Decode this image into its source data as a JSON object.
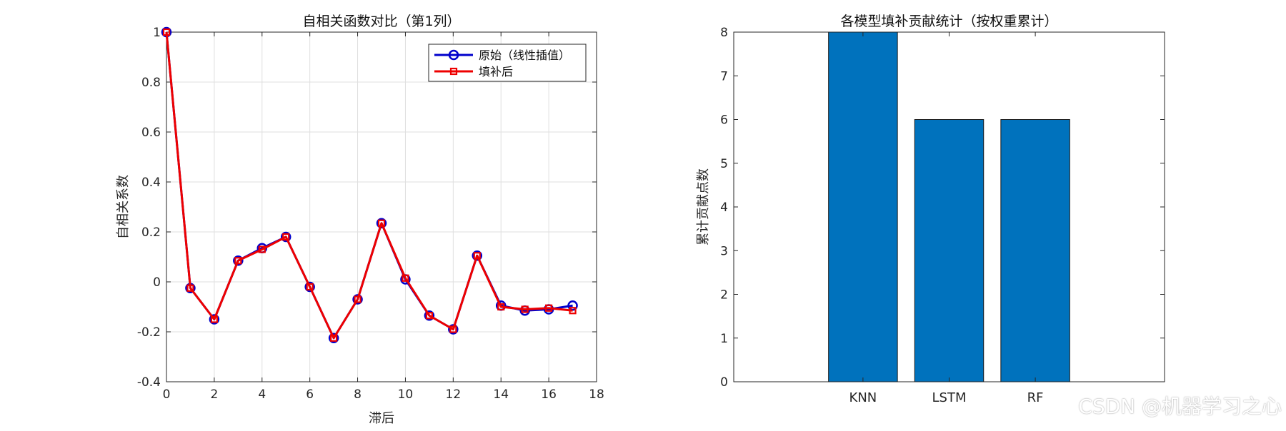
{
  "chart_data": [
    {
      "type": "line",
      "title": "自相关函数对比（第1列）",
      "xlabel": "滞后",
      "ylabel": "自相关系数",
      "xlim": [
        0,
        18
      ],
      "ylim": [
        -0.4,
        1
      ],
      "xticks": [
        0,
        2,
        4,
        6,
        8,
        10,
        12,
        14,
        16,
        18
      ],
      "yticks": [
        -0.4,
        -0.2,
        0,
        0.2,
        0.4,
        0.6,
        0.8,
        1
      ],
      "grid": true,
      "legend": "top-right",
      "x": [
        0,
        1,
        2,
        3,
        4,
        5,
        6,
        7,
        8,
        9,
        10,
        11,
        12,
        13,
        14,
        15,
        16,
        17
      ],
      "series": [
        {
          "name": "原始（线性插值）",
          "color": "#0000cc",
          "marker": "circle",
          "values": [
            1.0,
            -0.025,
            -0.15,
            0.085,
            0.135,
            0.18,
            -0.02,
            -0.225,
            -0.07,
            0.235,
            0.01,
            -0.135,
            -0.19,
            0.105,
            -0.095,
            -0.115,
            -0.11,
            -0.095
          ]
        },
        {
          "name": "填补后",
          "color": "#ee0000",
          "marker": "square",
          "values": [
            1.0,
            -0.025,
            -0.15,
            0.085,
            0.13,
            0.18,
            -0.02,
            -0.225,
            -0.07,
            0.235,
            0.015,
            -0.135,
            -0.19,
            0.105,
            -0.1,
            -0.11,
            -0.105,
            -0.115
          ]
        }
      ]
    },
    {
      "type": "bar",
      "title": "各模型填补贡献统计（按权重累计）",
      "xlabel": "",
      "ylabel": "累计贡献点数",
      "categories": [
        "KNN",
        "LSTM",
        "RF"
      ],
      "values": [
        8,
        6,
        6
      ],
      "ylim": [
        0,
        8
      ],
      "yticks": [
        0,
        1,
        2,
        3,
        4,
        5,
        6,
        7,
        8
      ],
      "grid": false,
      "bar_color": "#0072bd"
    }
  ],
  "watermark": "CSDN @机器学习之心"
}
